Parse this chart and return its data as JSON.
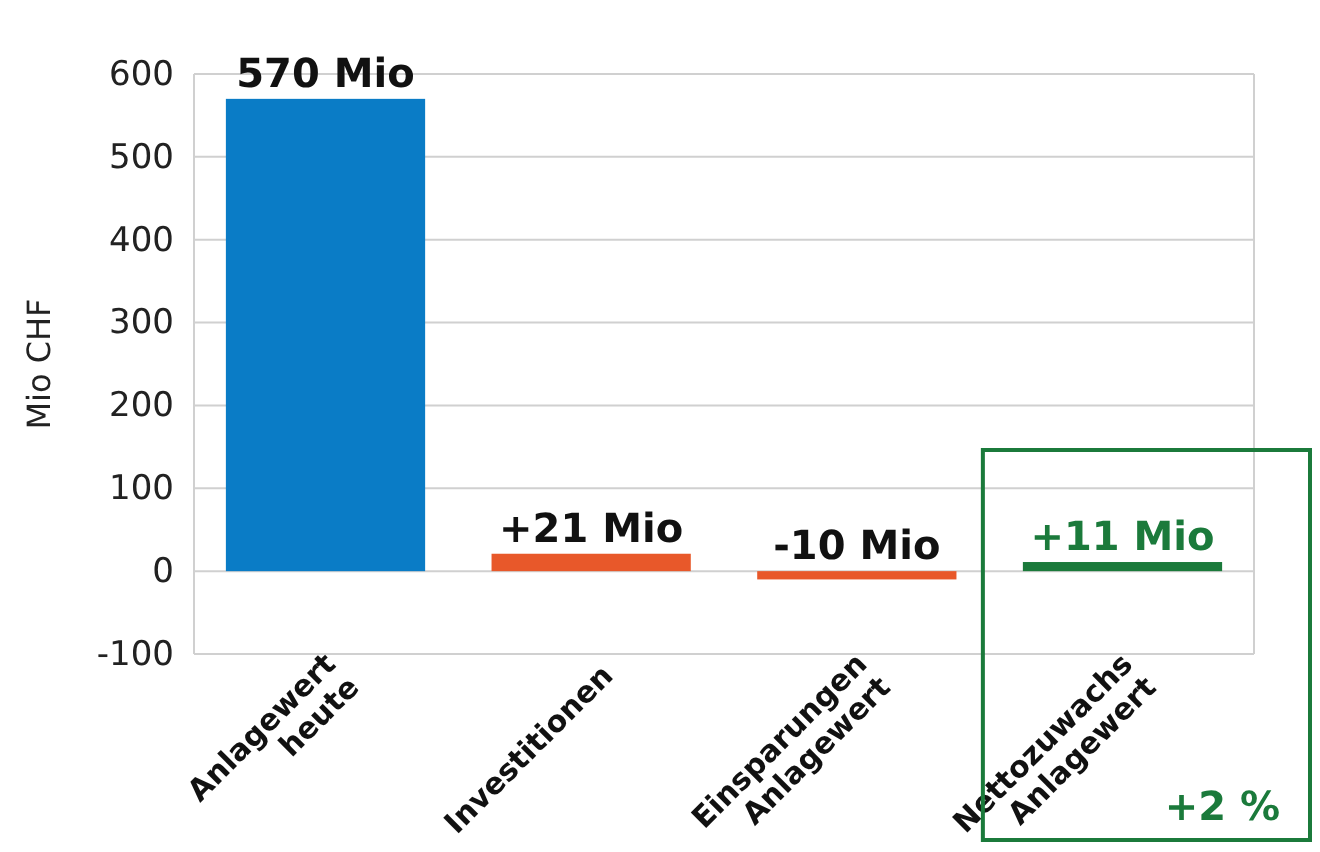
{
  "chart_data": {
    "type": "bar",
    "ylabel": "Mio CHF",
    "categories": [
      "Anlagewert\nheute",
      "Investitionen",
      "Einsparungen\nAnlagewert",
      "Nettozuwachs\nAnlagewert"
    ],
    "values": [
      570,
      21,
      -10,
      11
    ],
    "colors": [
      "#0a7cc6",
      "#e8582a",
      "#e8582a",
      "#1b7a3b"
    ],
    "value_labels": [
      "570 Mio",
      "+21 Mio",
      "-10 Mio",
      "+11 Mio"
    ],
    "ylim": [
      -100,
      600
    ],
    "yticks": [
      -100,
      0,
      100,
      200,
      300,
      400,
      500,
      600
    ],
    "grid": "y",
    "annotations": [
      "+2 %"
    ]
  }
}
